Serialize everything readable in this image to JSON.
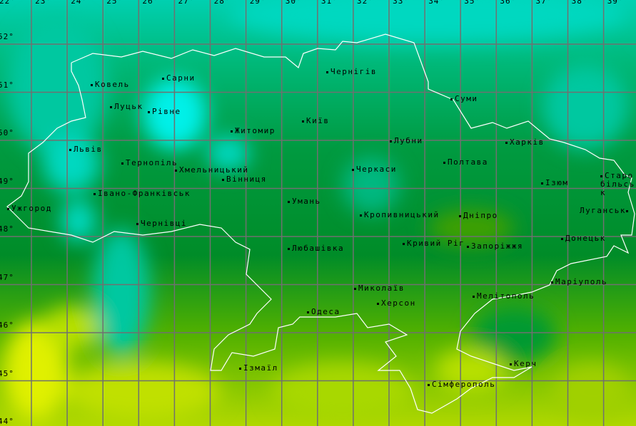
{
  "map": {
    "longitude_labels": [
      "22°",
      "23°",
      "24°",
      "25°",
      "26°",
      "27°",
      "28°",
      "29°",
      "30°",
      "31°",
      "32°",
      "33°",
      "34°",
      "35°",
      "36°",
      "37°",
      "38°",
      "39°"
    ],
    "latitude_labels": [
      "52°",
      "51°",
      "50°",
      "49°",
      "48°",
      "47°",
      "46°",
      "45°",
      "44°"
    ],
    "colors": {
      "teal": "#00d8b8",
      "cyan": "#00f0e8",
      "green": "#00a040",
      "dark_green": "#008820",
      "yellow_green": "#a0d000",
      "yellow": "#e8f000",
      "border": "#ffffff",
      "grid": "#707070"
    },
    "cities": [
      {
        "name": "Ковель"
      },
      {
        "name": "Сарни"
      },
      {
        "name": "Луцьк"
      },
      {
        "name": "Рівне"
      },
      {
        "name": "Житомир"
      },
      {
        "name": "Київ"
      },
      {
        "name": "Чернігів"
      },
      {
        "name": "Суми"
      },
      {
        "name": "Львів"
      },
      {
        "name": "Тернопіль"
      },
      {
        "name": "Хмельницький"
      },
      {
        "name": "Вінниця"
      },
      {
        "name": "Лубни"
      },
      {
        "name": "Харків"
      },
      {
        "name": "Полтава"
      },
      {
        "name": "Черкаси"
      },
      {
        "name": "Ізюм"
      },
      {
        "name": "Старобільськ"
      },
      {
        "name": "Луганськ"
      },
      {
        "name": "Івано-Франківськ"
      },
      {
        "name": "Ужгород"
      },
      {
        "name": "Умань"
      },
      {
        "name": "Кропивницький"
      },
      {
        "name": "Дніпро"
      },
      {
        "name": "Чернівці"
      },
      {
        "name": "Кривий Ріг"
      },
      {
        "name": "Запоріжжя"
      },
      {
        "name": "Донецьк"
      },
      {
        "name": "Любашівка"
      },
      {
        "name": "Маріуполь"
      },
      {
        "name": "Миколаїв"
      },
      {
        "name": "Мелітополь"
      },
      {
        "name": "Херсон"
      },
      {
        "name": "Одеса"
      },
      {
        "name": "Ізмаїл"
      },
      {
        "name": "Керч"
      },
      {
        "name": "Сімферополь"
      }
    ]
  }
}
